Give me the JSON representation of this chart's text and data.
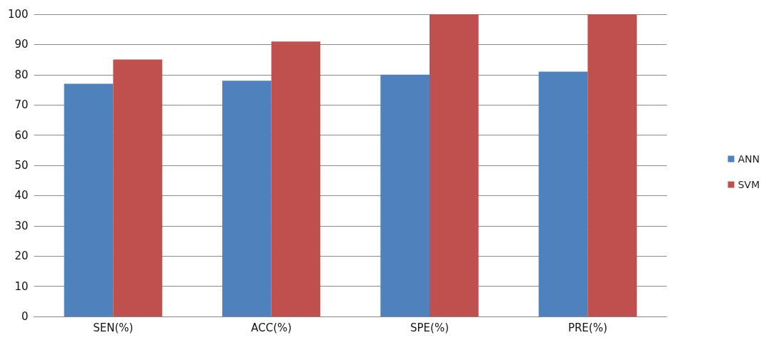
{
  "chart_data": {
    "type": "bar",
    "categories": [
      "SEN(%)",
      "ACC(%)",
      "SPE(%)",
      "PRE(%)"
    ],
    "series": [
      {
        "name": "ANN",
        "color": "#4f81bd",
        "values": [
          77,
          78,
          80,
          81
        ]
      },
      {
        "name": "SVM",
        "color": "#c0504d",
        "values": [
          85,
          91,
          100,
          100
        ]
      }
    ],
    "ylim": [
      0,
      100
    ],
    "yticks": [
      0,
      10,
      20,
      30,
      40,
      50,
      60,
      70,
      80,
      90,
      100
    ],
    "grid": "y",
    "legend": "right"
  }
}
